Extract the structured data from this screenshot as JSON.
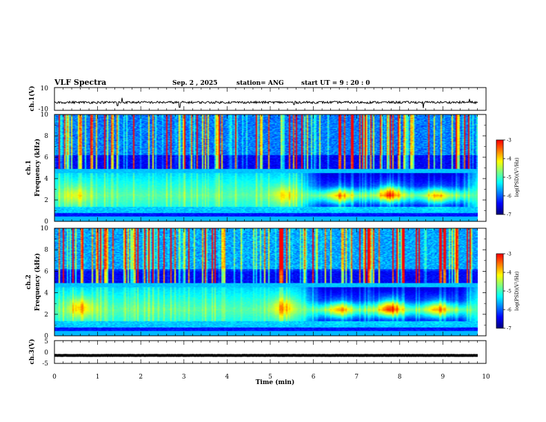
{
  "header": {
    "title": "VLF Spectra",
    "date": "Sep. 2 , 2025",
    "station": "station= ANG",
    "start": "start  UT  =   9 : 20 : 0"
  },
  "colors": {
    "spectrum_ramp": [
      "#000080",
      "#0000ff",
      "#0080ff",
      "#00ffff",
      "#80ff80",
      "#ffff00",
      "#ff8000",
      "#ff0000",
      "#ffffff"
    ],
    "waveform": "#000000",
    "background": "#ffffff"
  },
  "chart_data": [
    {
      "type": "line",
      "panel": "ch1-waveform",
      "ylabel": "ch.1(V)",
      "ylim": [
        -10,
        10
      ],
      "y_ticks": [
        "10",
        "-10"
      ],
      "baseline": -3,
      "noise_amplitude": 1.0,
      "spikes": [
        [
          1.56,
          4
        ],
        [
          1.46,
          -3
        ],
        [
          2.9,
          -4.5
        ],
        [
          5.55,
          -2
        ],
        [
          8.55,
          -5
        ],
        [
          9.62,
          3
        ]
      ]
    },
    {
      "type": "heatmap",
      "panel": "ch1-spectrogram",
      "xlabel": "",
      "ylabel_top": "ch.1",
      "ylabel": "Frequency (kHz)",
      "xlim": [
        0,
        10
      ],
      "ylim": [
        0,
        10
      ],
      "y_ticks": [
        "0",
        "2",
        "4",
        "6",
        "8",
        "10"
      ],
      "colorbar": {
        "label": "log(PSD)(V²/Hz)",
        "range": [
          -7,
          -3
        ],
        "ticks": [
          "-3",
          "-4",
          "-5",
          "-6",
          "-7"
        ]
      },
      "blobs": [
        [
          6.6,
          2.3,
          0.28
        ],
        [
          7.75,
          2.6,
          0.4
        ],
        [
          8.85,
          2.3,
          0.28
        ],
        [
          5.3,
          2.4,
          0.2
        ],
        [
          0.5,
          2.4,
          0.15
        ]
      ]
    },
    {
      "type": "heatmap",
      "panel": "ch2-spectrogram",
      "xlabel": "",
      "ylabel_top": "ch.2",
      "ylabel": "Frequency (kHz)",
      "xlim": [
        0,
        10
      ],
      "ylim": [
        0,
        10
      ],
      "y_ticks": [
        "0",
        "2",
        "4",
        "6",
        "8",
        "10"
      ],
      "colorbar": {
        "label": "log(PSD)(V²/Hz)",
        "range": [
          -7,
          -3
        ],
        "ticks": [
          "-3",
          "-4",
          "-5",
          "-6",
          "-7"
        ]
      },
      "blobs": [
        [
          6.6,
          2.4,
          0.3
        ],
        [
          7.75,
          2.6,
          0.45
        ],
        [
          8.85,
          2.5,
          0.3
        ],
        [
          5.3,
          2.6,
          0.25
        ],
        [
          0.6,
          2.6,
          0.25
        ]
      ]
    },
    {
      "type": "line",
      "panel": "ch3-waveform",
      "ylabel": "ch.3(V)",
      "xlabel": "Time (min)",
      "xlim": [
        0,
        10
      ],
      "ylim": [
        -5,
        5
      ],
      "y_ticks": [
        "5",
        "0",
        "-5"
      ],
      "x_ticks": [
        "0",
        "1",
        "2",
        "3",
        "4",
        "5",
        "6",
        "7",
        "8",
        "9",
        "10"
      ],
      "baseline": -1.5,
      "noise_amplitude": 0.05
    }
  ]
}
